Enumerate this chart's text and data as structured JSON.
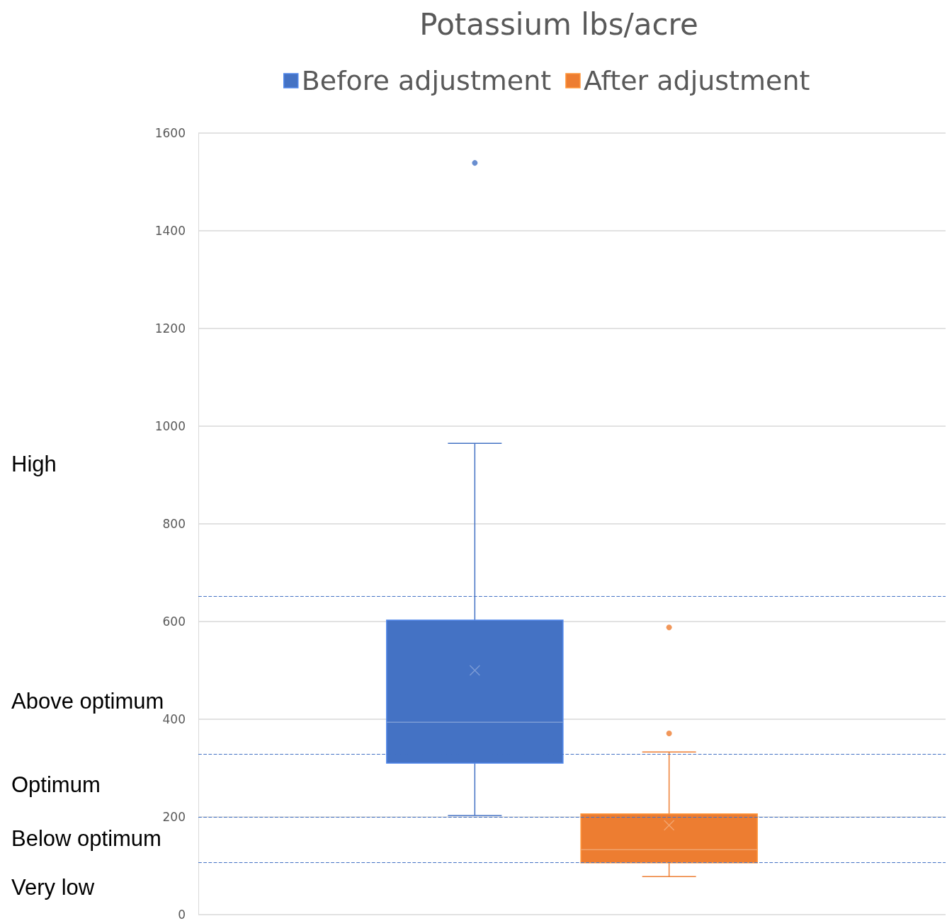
{
  "chart_data": {
    "type": "box",
    "title": "Potassium lbs/acre",
    "categories": [
      null
    ],
    "series": [
      {
        "name": "Before adjustment",
        "color": "#4472c4",
        "boxes": [
          {
            "low": 203,
            "q1": 310,
            "median": 394,
            "q3": 603,
            "high": 965,
            "mean": 500,
            "outliers": [
              1539
            ]
          }
        ]
      },
      {
        "name": "After adjustment",
        "color": "#ed7d31",
        "boxes": [
          {
            "low": 78,
            "q1": 106,
            "median": 133,
            "q3": 206,
            "high": 333,
            "mean": 183,
            "outliers": [
              588,
              371
            ]
          }
        ]
      }
    ],
    "ylim": [
      0,
      1600
    ],
    "yticks": [
      0,
      200,
      400,
      600,
      800,
      1000,
      1200,
      1400,
      1600
    ],
    "ref_lines": [
      {
        "axis": "y",
        "value": 652,
        "color": "#4472c4",
        "line_style": "dashed"
      },
      {
        "axis": "y",
        "value": 328,
        "color": "#4472c4",
        "line_style": "dashed"
      },
      {
        "axis": "y",
        "value": 200,
        "color": "#4472c4",
        "line_style": "dashed"
      },
      {
        "axis": "y",
        "value": 107,
        "color": "#4472c4",
        "line_style": "dashed"
      }
    ],
    "annotations": [
      "High",
      "Above optimum",
      "Optimum",
      "Below optimum",
      "Very low"
    ],
    "grid": "y",
    "legend": "top",
    "tick_labels": "y"
  }
}
